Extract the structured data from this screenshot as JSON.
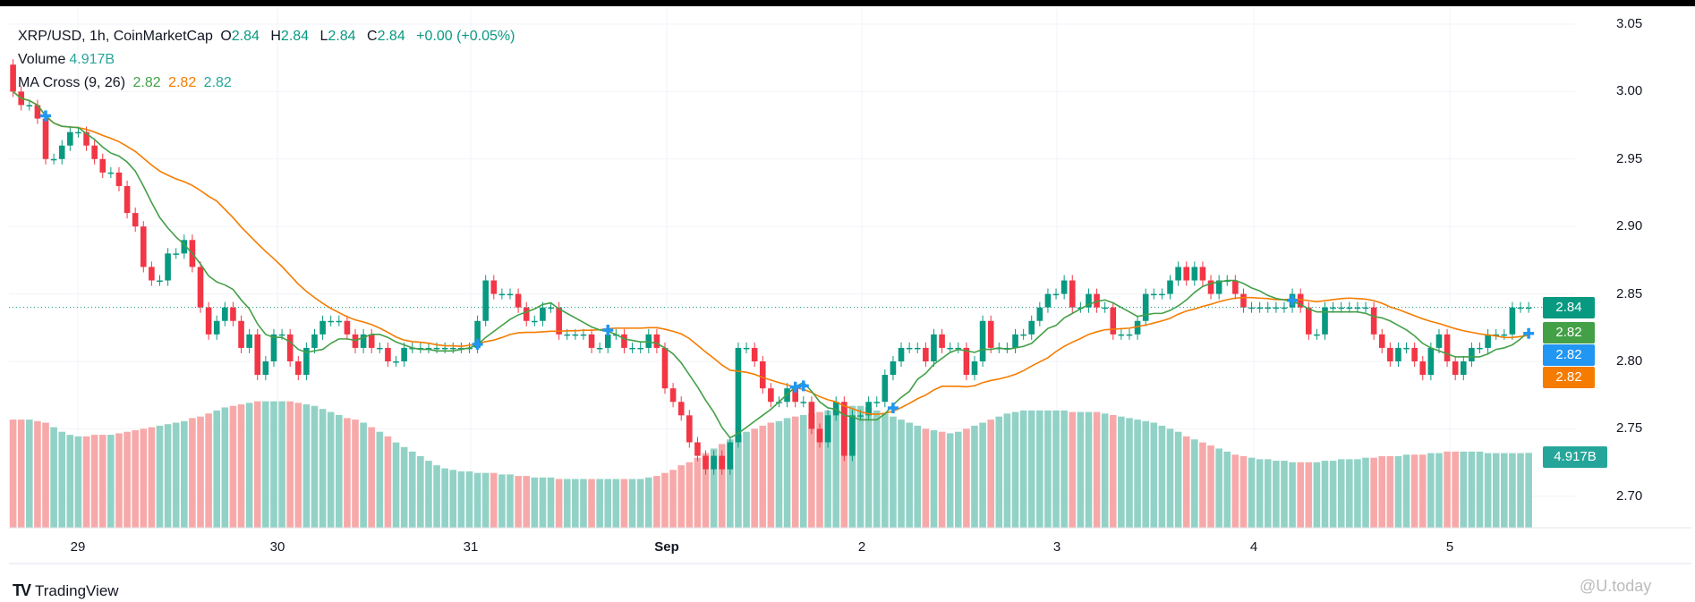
{
  "legend": {
    "symbol": "XRP/USD, 1h, CoinMarketCap",
    "o_label": "O",
    "o": "2.84",
    "h_label": "H",
    "h": "2.84",
    "l_label": "L",
    "l": "2.84",
    "c_label": "C",
    "c": "2.84",
    "change": "+0.00 (+0.05%)",
    "volume_label": "Volume",
    "volume": "4.917B",
    "ma_label": "MA Cross (9, 26)",
    "ma_fast": "2.82",
    "ma_slow": "2.82",
    "ma_cross": "2.82"
  },
  "price_tags": {
    "last": "2.84",
    "ma_fast": "2.82",
    "ma_cross": "2.82",
    "ma_slow": "2.82",
    "volume": "4.917B"
  },
  "colors": {
    "up": "#089981",
    "down": "#f23645",
    "vol_up": "#92d2c6",
    "vol_down": "#f7a9a9",
    "ma_fast": "#43a047",
    "ma_slow": "#f57c00",
    "cross": "#2196f3"
  },
  "branding": {
    "name": "TradingView",
    "watermark": "@U.today"
  },
  "chart_data": {
    "type": "candlestick",
    "title": "XRP/USD, 1h, CoinMarketCap",
    "interval": "1h",
    "price_axis": {
      "ticks": [
        "3.05",
        "3.00",
        "2.95",
        "2.90",
        "2.85",
        "2.80",
        "2.75",
        "2.70"
      ],
      "ylim": [
        2.67,
        3.05
      ]
    },
    "time_axis": {
      "ticks": [
        "29",
        "30",
        "31",
        "Sep",
        "2",
        "3",
        "4",
        "5"
      ]
    },
    "grid": true,
    "first_open": 3.02,
    "closes": [
      3.0,
      2.99,
      2.99,
      2.98,
      2.95,
      2.95,
      2.96,
      2.97,
      2.97,
      2.96,
      2.95,
      2.94,
      2.94,
      2.93,
      2.91,
      2.9,
      2.87,
      2.86,
      2.86,
      2.88,
      2.88,
      2.89,
      2.87,
      2.84,
      2.82,
      2.83,
      2.84,
      2.83,
      2.81,
      2.82,
      2.79,
      2.8,
      2.82,
      2.82,
      2.8,
      2.79,
      2.81,
      2.82,
      2.83,
      2.83,
      2.83,
      2.82,
      2.81,
      2.82,
      2.81,
      2.81,
      2.8,
      2.8,
      2.81,
      2.81,
      2.81,
      2.81,
      2.81,
      2.81,
      2.81,
      2.81,
      2.81,
      2.83,
      2.86,
      2.85,
      2.85,
      2.85,
      2.84,
      2.83,
      2.83,
      2.84,
      2.84,
      2.82,
      2.82,
      2.82,
      2.82,
      2.81,
      2.81,
      2.82,
      2.82,
      2.81,
      2.81,
      2.81,
      2.82,
      2.81,
      2.78,
      2.77,
      2.76,
      2.74,
      2.73,
      2.72,
      2.73,
      2.72,
      2.74,
      2.81,
      2.81,
      2.8,
      2.78,
      2.77,
      2.77,
      2.78,
      2.77,
      2.77,
      2.75,
      2.74,
      2.76,
      2.77,
      2.73,
      2.76,
      2.76,
      2.77,
      2.77,
      2.79,
      2.8,
      2.81,
      2.81,
      2.81,
      2.8,
      2.82,
      2.81,
      2.81,
      2.81,
      2.79,
      2.8,
      2.83,
      2.81,
      2.81,
      2.81,
      2.82,
      2.82,
      2.83,
      2.84,
      2.85,
      2.85,
      2.86,
      2.84,
      2.84,
      2.85,
      2.84,
      2.84,
      2.82,
      2.82,
      2.82,
      2.83,
      2.85,
      2.85,
      2.85,
      2.86,
      2.87,
      2.86,
      2.87,
      2.86,
      2.85,
      2.86,
      2.86,
      2.85,
      2.84,
      2.84,
      2.84,
      2.84,
      2.84,
      2.84,
      2.85,
      2.84,
      2.82,
      2.82,
      2.84,
      2.84,
      2.84,
      2.84,
      2.84,
      2.84,
      2.82,
      2.81,
      2.8,
      2.81,
      2.81,
      2.8,
      2.79,
      2.81,
      2.82,
      2.8,
      2.79,
      2.8,
      2.81,
      2.81,
      2.82,
      2.82,
      2.82,
      2.84,
      2.84,
      2.84
    ],
    "volume_billions": [
      7.1,
      7.1,
      7.1,
      7.0,
      6.9,
      6.6,
      6.3,
      6.1,
      6.0,
      6.0,
      6.1,
      6.1,
      6.1,
      6.2,
      6.3,
      6.4,
      6.5,
      6.6,
      6.7,
      6.8,
      6.9,
      7.0,
      7.2,
      7.3,
      7.5,
      7.7,
      7.9,
      8.0,
      8.1,
      8.2,
      8.3,
      8.3,
      8.3,
      8.3,
      8.3,
      8.2,
      8.1,
      8.0,
      7.8,
      7.6,
      7.4,
      7.2,
      7.1,
      6.9,
      6.6,
      6.3,
      6.0,
      5.6,
      5.3,
      5.0,
      4.7,
      4.4,
      4.1,
      3.9,
      3.8,
      3.7,
      3.7,
      3.6,
      3.6,
      3.6,
      3.5,
      3.5,
      3.4,
      3.4,
      3.3,
      3.3,
      3.3,
      3.2,
      3.2,
      3.2,
      3.2,
      3.2,
      3.2,
      3.2,
      3.2,
      3.2,
      3.2,
      3.2,
      3.3,
      3.4,
      3.6,
      3.8,
      4.1,
      4.3,
      4.6,
      4.9,
      5.2,
      5.5,
      5.8,
      6.1,
      6.3,
      6.5,
      6.7,
      6.9,
      7.0,
      7.2,
      7.3,
      7.4,
      7.5,
      7.6,
      7.7,
      7.8,
      7.9,
      8.0,
      8.0,
      7.9,
      7.7,
      7.5,
      7.3,
      7.1,
      6.9,
      6.7,
      6.5,
      6.4,
      6.3,
      6.2,
      6.3,
      6.5,
      6.7,
      6.9,
      7.1,
      7.3,
      7.5,
      7.6,
      7.7,
      7.7,
      7.7,
      7.7,
      7.7,
      7.7,
      7.6,
      7.6,
      7.6,
      7.6,
      7.5,
      7.4,
      7.3,
      7.2,
      7.1,
      7.0,
      6.9,
      6.7,
      6.5,
      6.3,
      6.0,
      5.8,
      5.6,
      5.4,
      5.2,
      5.0,
      4.8,
      4.7,
      4.6,
      4.5,
      4.5,
      4.4,
      4.4,
      4.3,
      4.3,
      4.3,
      4.3,
      4.4,
      4.4,
      4.5,
      4.5,
      4.5,
      4.6,
      4.6,
      4.7,
      4.7,
      4.7,
      4.8,
      4.8,
      4.8,
      4.9,
      4.9,
      5.0,
      5.0,
      5.0,
      5.0,
      5.0,
      4.9,
      4.9,
      4.9,
      4.9,
      4.9,
      4.917
    ],
    "ma_periods": [
      9,
      26
    ],
    "cross_candle_indices": [
      4,
      57,
      73,
      96,
      97,
      108,
      157,
      186
    ],
    "last_price": 2.84
  }
}
